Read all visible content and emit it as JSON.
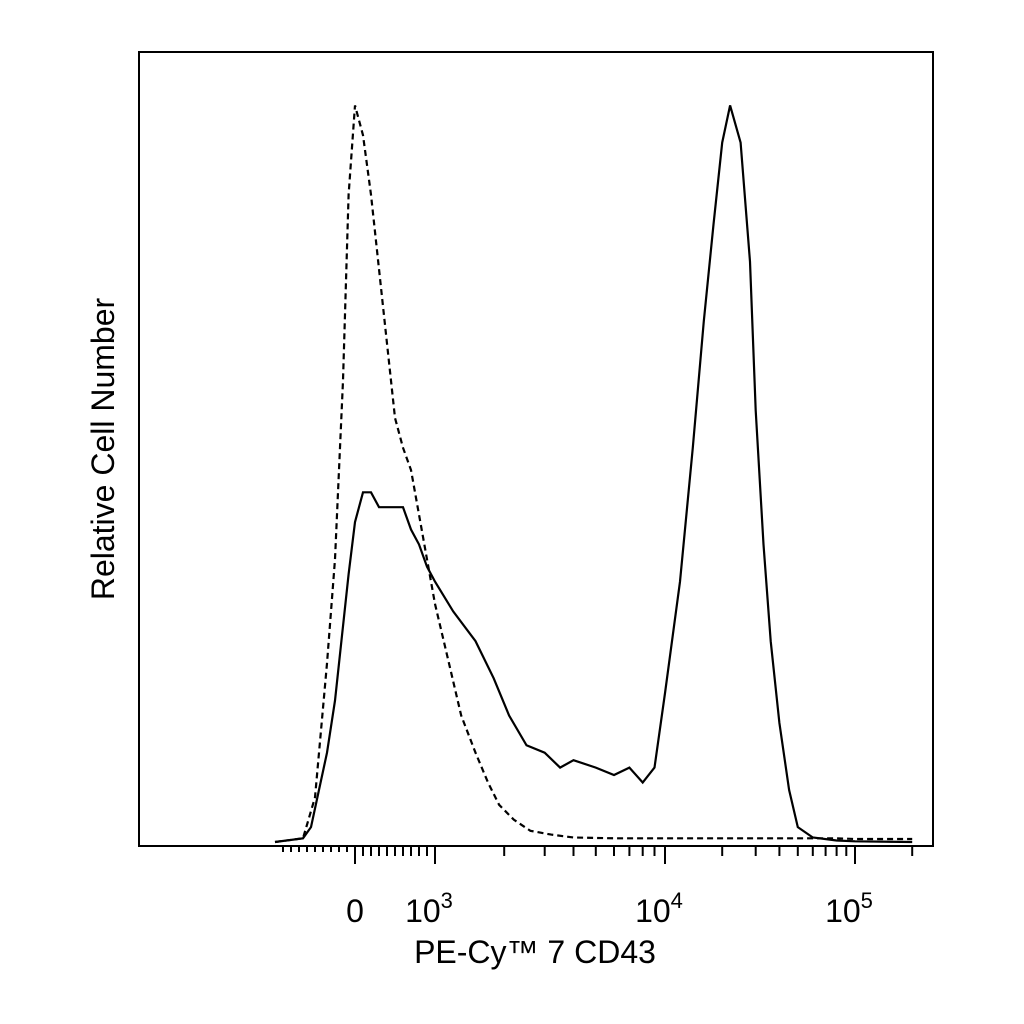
{
  "chart_data": {
    "type": "line",
    "title": "",
    "xlabel": "PE-Cy™ 7 CD43",
    "ylabel": "Relative Cell Number",
    "x_scale": "biexponential",
    "xlim": [
      -1000,
      200000
    ],
    "ylim": [
      0,
      1
    ],
    "grid": false,
    "legend": "none",
    "x_ticks": [
      {
        "value": 0,
        "label": "0",
        "sup": ""
      },
      {
        "value": 1000,
        "label": "10",
        "sup": "3"
      },
      {
        "value": 10000,
        "label": "10",
        "sup": "4"
      },
      {
        "value": 100000,
        "label": "10",
        "sup": "5"
      }
    ],
    "series": [
      {
        "style": "dashed",
        "color": "#000000",
        "x": [
          -1000,
          -650,
          -500,
          -350,
          -250,
          -150,
          -80,
          0,
          100,
          200,
          300,
          400,
          500,
          600,
          700,
          800,
          900,
          1000,
          1150,
          1300,
          1500,
          1700,
          1900,
          2200,
          2600,
          3200,
          4000,
          6000,
          10000,
          20000,
          50000,
          80000,
          100000,
          200000
        ],
        "y": [
          0,
          0.005,
          0.06,
          0.24,
          0.38,
          0.62,
          0.87,
          0.99,
          0.95,
          0.87,
          0.77,
          0.67,
          0.57,
          0.53,
          0.5,
          0.44,
          0.38,
          0.32,
          0.24,
          0.17,
          0.12,
          0.08,
          0.05,
          0.03,
          0.015,
          0.01,
          0.006,
          0.005,
          0.005,
          0.005,
          0.005,
          0.005,
          0.004,
          0.004
        ]
      },
      {
        "style": "solid",
        "color": "#000000",
        "x": [
          -1000,
          -650,
          -550,
          -450,
          -350,
          -250,
          -150,
          -80,
          0,
          100,
          200,
          300,
          400,
          500,
          600,
          700,
          800,
          900,
          1000,
          1200,
          1500,
          1800,
          2100,
          2500,
          3000,
          3500,
          4000,
          5000,
          6000,
          7000,
          8000,
          9000,
          10000,
          12000,
          14000,
          16000,
          18000,
          20000,
          22000,
          25000,
          28000,
          30000,
          33000,
          36000,
          40000,
          45000,
          50000,
          60000,
          80000,
          100000,
          200000
        ],
        "y": [
          0,
          0.005,
          0.02,
          0.07,
          0.12,
          0.19,
          0.29,
          0.36,
          0.43,
          0.47,
          0.47,
          0.45,
          0.45,
          0.45,
          0.45,
          0.42,
          0.4,
          0.37,
          0.35,
          0.31,
          0.27,
          0.22,
          0.17,
          0.13,
          0.12,
          0.1,
          0.11,
          0.1,
          0.09,
          0.1,
          0.08,
          0.1,
          0.2,
          0.35,
          0.53,
          0.7,
          0.83,
          0.94,
          0.99,
          0.94,
          0.78,
          0.58,
          0.4,
          0.27,
          0.16,
          0.07,
          0.02,
          0.006,
          0.002,
          0.001,
          0.0
        ]
      }
    ]
  }
}
